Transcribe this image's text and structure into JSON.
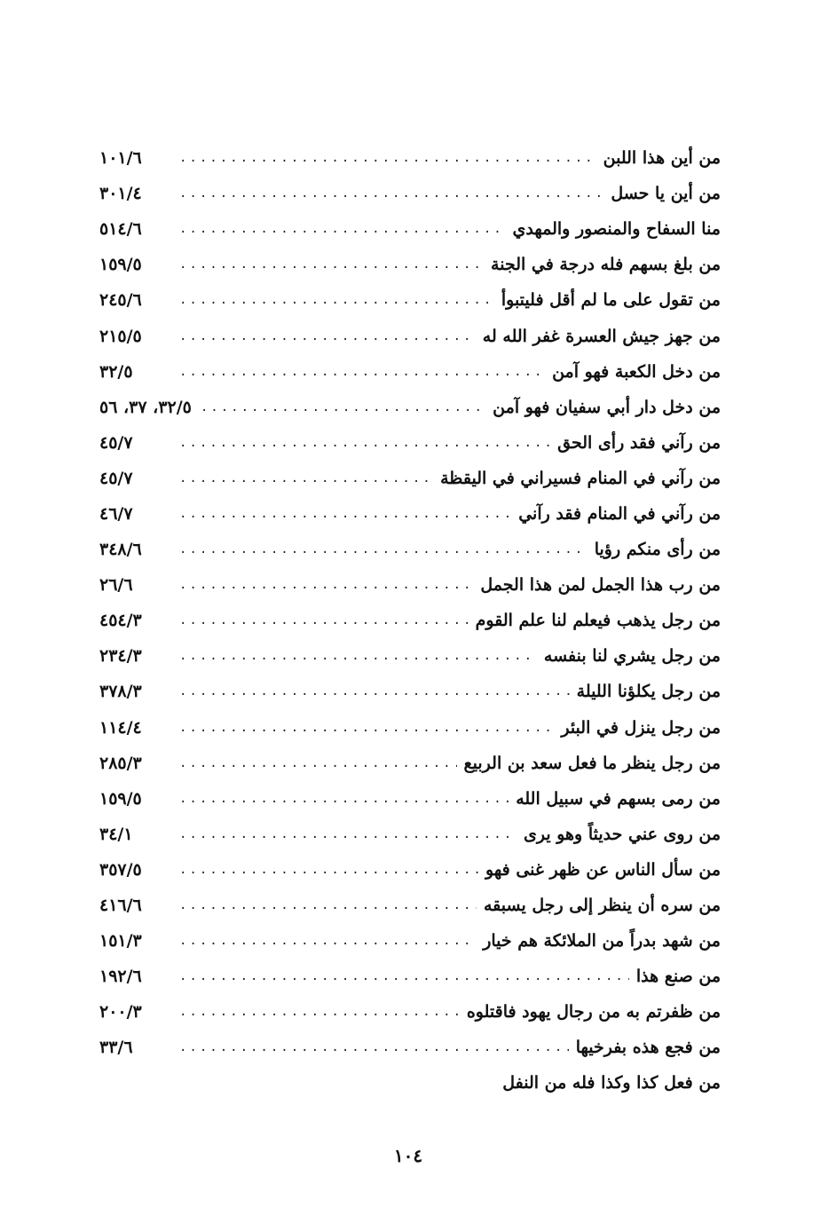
{
  "entries": [
    {
      "title": "من أين هذا اللبن",
      "ref": "١٠١/٦"
    },
    {
      "title": "من أين يا حسل",
      "ref": "٣٠١/٤"
    },
    {
      "title": "منا السفاح والمنصور والمهدي",
      "ref": "٥١٤/٦"
    },
    {
      "title": "من بلغ بسهم فله درجة في الجنة",
      "ref": "١٥٩/٥"
    },
    {
      "title": "من تقول على ما لم أقل فليتبوأ",
      "ref": "٢٤٥/٦"
    },
    {
      "title": "من جهز جيش العسرة غفر الله له",
      "ref": "٢١٥/٥"
    },
    {
      "title": "من دخل الكعبة فهو آمن",
      "ref": "٣٢/٥"
    },
    {
      "title": "من دخل دار أبي سفيان فهو آمن",
      "ref": "٥٦ ،٣٧ ،٣٢/٥"
    },
    {
      "title": "من رآني فقد رأى الحق",
      "ref": "٤٥/٧"
    },
    {
      "title": "من رآني في المنام فسيراني في اليقظة",
      "ref": "٤٥/٧"
    },
    {
      "title": "من رآني في المنام فقد رآني",
      "ref": "٤٦/٧"
    },
    {
      "title": "من رأى منكم رؤيا",
      "ref": "٣٤٨/٦"
    },
    {
      "title": "من رب هذا الجمل لمن هذا الجمل",
      "ref": "٢٦/٦"
    },
    {
      "title": "من رجل يذهب فيعلم لنا علم القوم",
      "ref": "٤٥٤/٣"
    },
    {
      "title": "من رجل يشري لنا بنفسه",
      "ref": "٢٣٤/٣"
    },
    {
      "title": "من رجل يكلؤنا الليلة",
      "ref": "٣٧٨/٣"
    },
    {
      "title": "من رجل ينزل في البئر",
      "ref": "١١٤/٤"
    },
    {
      "title": "من رجل ينظر ما فعل سعد بن الربيع",
      "ref": "٢٨٥/٣"
    },
    {
      "title": "من رمى بسهم في سبيل الله",
      "ref": "١٥٩/٥"
    },
    {
      "title": "من روى عني حديثاً وهو يرى",
      "ref": "٣٤/١"
    },
    {
      "title": "من سأل الناس عن ظهر غنى فهو",
      "ref": "٣٥٧/٥"
    },
    {
      "title": "من سره أن ينظر إلى رجل يسبقه",
      "ref": "٤١٦/٦"
    },
    {
      "title": "من شهد بدراً من الملائكة هم خيار",
      "ref": "١٥١/٣"
    },
    {
      "title": "من صنع هذا",
      "ref": "١٩٢/٦"
    },
    {
      "title": "من ظفرتم به من رجال يهود فاقتلوه",
      "ref": "٢٠٠/٣"
    },
    {
      "title": "من فجع هذه بفرخيها",
      "ref": "٣٣/٦"
    },
    {
      "title": "من فعل كذا وكذا فله من النفل",
      "ref": ""
    }
  ],
  "page_number": "١٠٤"
}
